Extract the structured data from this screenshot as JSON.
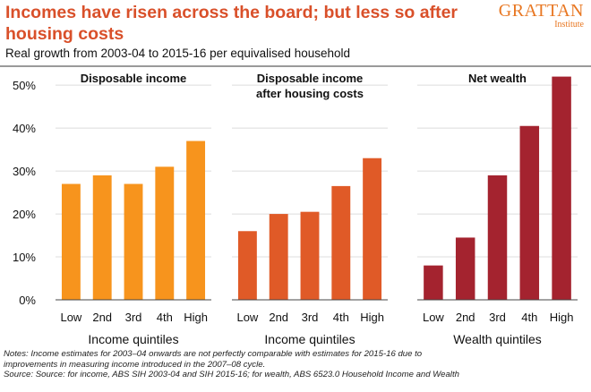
{
  "title": "Incomes have risen across the board; but less so after housing costs",
  "brand": {
    "name": "GRATTAN",
    "sub": "Institute"
  },
  "subtitle": "Real growth from 2003-04 to 2015-16 per equivalised household",
  "notes": [
    "Notes: Income estimates for 2003–04 onwards are not perfectly comparable with estimates for 2015-16 due to",
    "improvements in measuring income introduced in the 2007–08 cycle.",
    "Source: Source: for income, ABS SIH 2003-04 and SIH 2015-16; for wealth, ABS 6523.0 Household Income and Wealth"
  ],
  "chart_data": [
    {
      "type": "bar",
      "title": "Disposable income",
      "title_lines": [
        "Disposable income"
      ],
      "xlabel": "Income quintiles",
      "categories": [
        "Low",
        "2nd",
        "3rd",
        "4th",
        "High"
      ],
      "values": [
        27,
        29,
        27,
        31,
        37
      ],
      "color": "#f7941d",
      "ylim": [
        0,
        50
      ],
      "yticks": [
        "0%",
        "10%",
        "20%",
        "30%",
        "40%",
        "50%"
      ],
      "grid": true
    },
    {
      "type": "bar",
      "title": "Disposable income after housing costs",
      "title_lines": [
        "Disposable income",
        "after housing costs"
      ],
      "xlabel": "Income quintiles",
      "categories": [
        "Low",
        "2nd",
        "3rd",
        "4th",
        "High"
      ],
      "values": [
        16,
        20,
        20.5,
        26.5,
        33
      ],
      "color": "#e05a27",
      "ylim": [
        0,
        50
      ],
      "grid": true
    },
    {
      "type": "bar",
      "title": "Net wealth",
      "title_lines": [
        "Net wealth"
      ],
      "xlabel": "Wealth quintiles",
      "categories": [
        "Low",
        "2nd",
        "3rd",
        "4th",
        "High"
      ],
      "values": [
        8,
        14.5,
        29,
        40.5,
        52
      ],
      "color": "#a4232f",
      "ylim": [
        0,
        50
      ],
      "grid": true
    }
  ]
}
